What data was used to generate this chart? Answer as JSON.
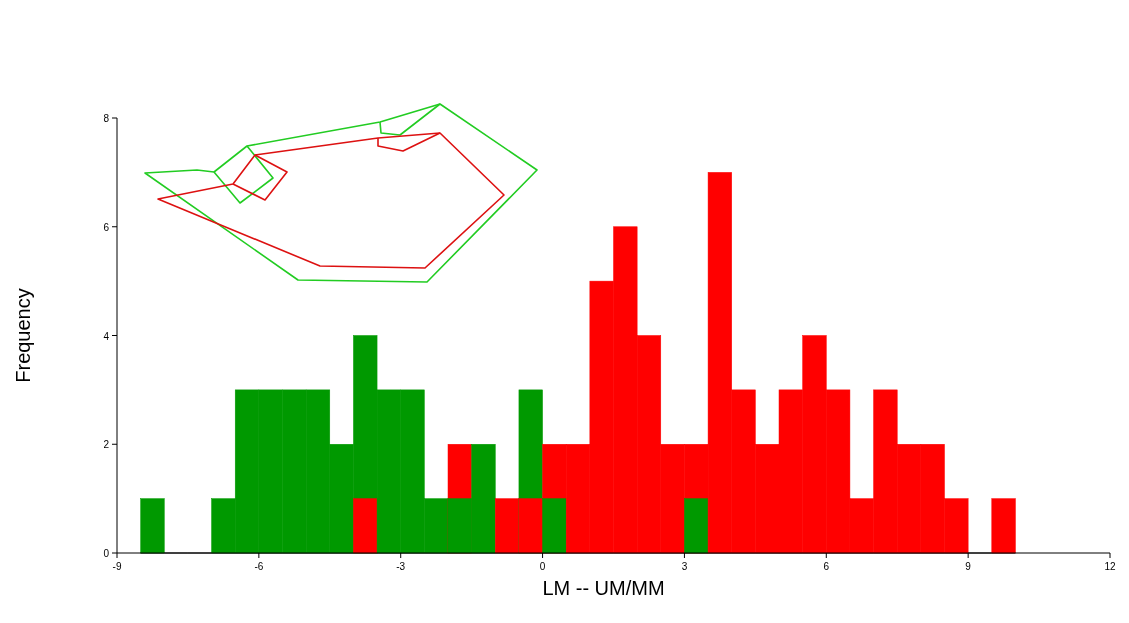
{
  "chart_data": {
    "type": "histogram",
    "xlabel": "LM -- UM/MM",
    "ylabel": "Frequency",
    "bins": [
      -8.5,
      -8,
      -7.5,
      -7,
      -6.5,
      -6,
      -5.5,
      -5,
      -4.5,
      -4,
      -3.5,
      -3,
      -2.5,
      -2,
      -1.5,
      -1,
      -0.5,
      0,
      0.5,
      1,
      1.5,
      2,
      2.5,
      3,
      3.5,
      4,
      4.5,
      5,
      5.5,
      6,
      6.5,
      7,
      7.5,
      8,
      8.5,
      9,
      9.5,
      10
    ],
    "series": [
      {
        "color": "#009900",
        "values": [
          1,
          0,
          0,
          1,
          3,
          3,
          3,
          3,
          2,
          4,
          3,
          3,
          1,
          1,
          2,
          0,
          3,
          1,
          0,
          0,
          0,
          0,
          0,
          1,
          0,
          0,
          0,
          0,
          0,
          0,
          0,
          0,
          0,
          0,
          0,
          0,
          0
        ]
      },
      {
        "color": "#ff0000",
        "values": [
          0,
          0,
          0,
          0,
          0,
          0,
          0,
          0,
          0,
          1,
          0,
          0,
          0,
          2,
          0,
          1,
          1,
          2,
          2,
          5,
          6,
          4,
          2,
          2,
          7,
          3,
          2,
          3,
          4,
          3,
          1,
          3,
          2,
          2,
          1,
          0,
          1
        ]
      }
    ],
    "xlim": [
      -9,
      12
    ],
    "xticks": [
      -9,
      -6,
      -3,
      0,
      3,
      6,
      9,
      12
    ],
    "ylim": [
      0,
      8
    ],
    "yticks": [
      0,
      2,
      4,
      6,
      8
    ],
    "grid": false
  }
}
